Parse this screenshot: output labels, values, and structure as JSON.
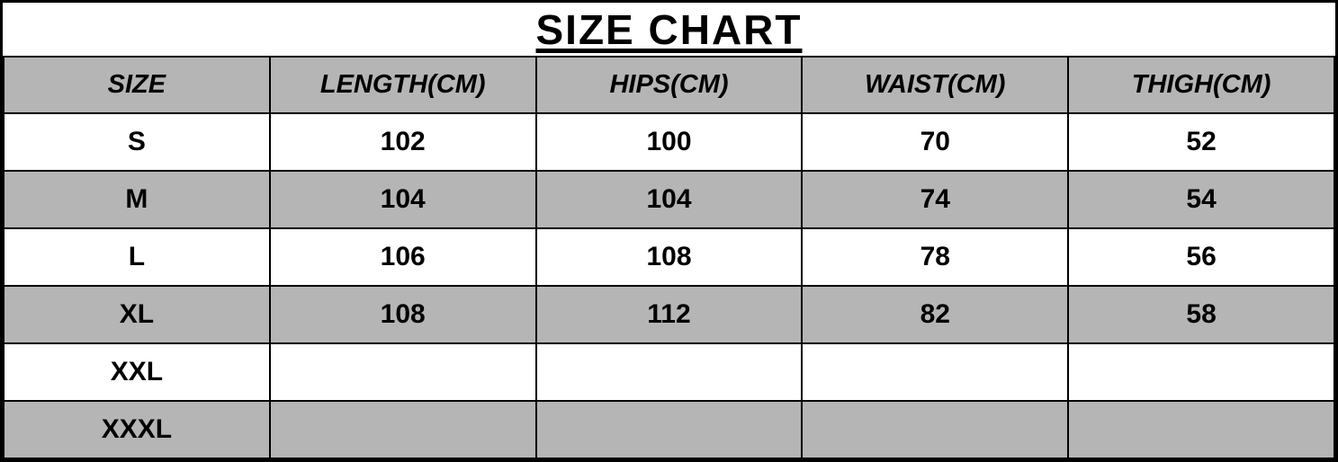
{
  "colors": {
    "header_bg": "#b5b5b5",
    "row_alt_bg": "#b5b5b5",
    "row_bg": "#ffffff",
    "border": "#000000"
  },
  "chart_data": {
    "type": "table",
    "title": "SIZE CHART",
    "columns": [
      "SIZE",
      "LENGTH(CM)",
      "HIPS(CM)",
      "WAIST(CM)",
      "THIGH(CM)"
    ],
    "rows": [
      [
        "S",
        "102",
        "100",
        "70",
        "52"
      ],
      [
        "M",
        "104",
        "104",
        "74",
        "54"
      ],
      [
        "L",
        "106",
        "108",
        "78",
        "56"
      ],
      [
        "XL",
        "108",
        "112",
        "82",
        "58"
      ],
      [
        "XXL",
        "",
        "",
        "",
        ""
      ],
      [
        "XXXL",
        "",
        "",
        "",
        ""
      ]
    ],
    "layout": {
      "header_style": "bold-italic",
      "row_striping": "white-gray-alternating",
      "grid": true
    }
  }
}
